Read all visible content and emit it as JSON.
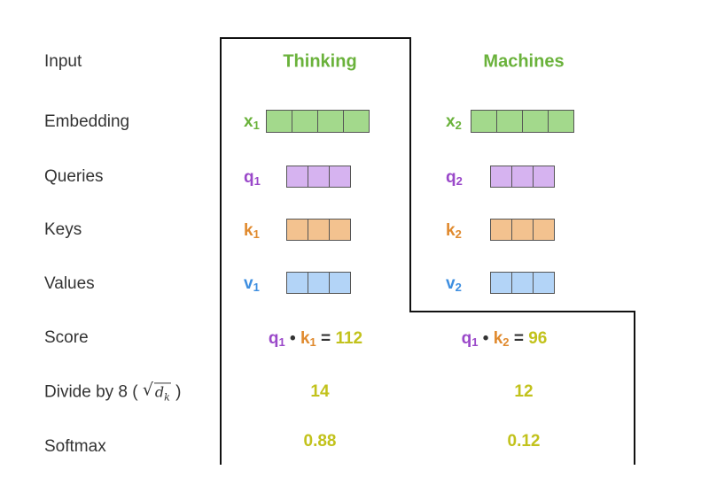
{
  "colors": {
    "green": "#6ab23b",
    "purple": "#9a48c9",
    "orange": "#e08a2e",
    "blue": "#3d8ee0",
    "yellow": "#c2c21c",
    "embed_fill": "#a3d98c",
    "query_fill": "#d6b3f0",
    "key_fill": "#f3c28f",
    "value_fill": "#b3d4f7"
  },
  "rows": {
    "input": "Input",
    "embedding": "Embedding",
    "queries": "Queries",
    "keys": "Keys",
    "values": "Values",
    "score": "Score",
    "divide": "Divide by 8 (",
    "divide_close": ")",
    "softmax": "Softmax"
  },
  "sqrt_symbol": "√",
  "sqrt_var": "d",
  "sqrt_sub": "k",
  "words": [
    {
      "word": "Thinking",
      "x_letter": "x",
      "x_idx": "1",
      "q_letter": "q",
      "q_idx": "1",
      "k_letter": "k",
      "k_idx": "1",
      "v_letter": "v",
      "v_idx": "1",
      "score_q": "q",
      "score_q_idx": "1",
      "dot": "•",
      "score_k": "k",
      "score_k_idx": "1",
      "equals": "=",
      "score": "112",
      "divided": "14",
      "softmax": "0.88"
    },
    {
      "word": "Machines",
      "x_letter": "x",
      "x_idx": "2",
      "q_letter": "q",
      "q_idx": "2",
      "k_letter": "k",
      "k_idx": "2",
      "v_letter": "v",
      "v_idx": "2",
      "score_q": "q",
      "score_q_idx": "1",
      "dot": "•",
      "score_k": "k",
      "score_k_idx": "2",
      "equals": "=",
      "score": "96",
      "divided": "12",
      "softmax": "0.12"
    }
  ]
}
